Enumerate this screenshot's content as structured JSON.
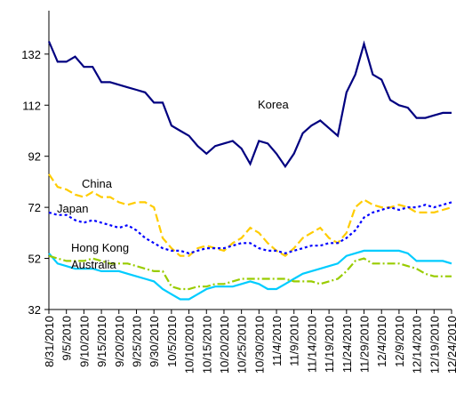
{
  "chart_data": {
    "type": "line",
    "categories": [
      "8/31/2010",
      null,
      "9/5/2010",
      null,
      "9/10/2010",
      null,
      "9/15/2010",
      null,
      "9/20/2010",
      null,
      "9/25/2010",
      null,
      "9/30/2010",
      null,
      "10/5/2010",
      null,
      "10/10/2010",
      null,
      "10/15/2010",
      null,
      "10/20/2010",
      null,
      "10/25/2010",
      null,
      "10/30/2010",
      null,
      "11/4/2010",
      null,
      "11/9/2010",
      null,
      "11/14/2010",
      null,
      "11/19/2010",
      null,
      "11/24/2010",
      null,
      "11/29/2010",
      null,
      "12/4/2010",
      null,
      "12/9/2010",
      null,
      "12/14/2010",
      null,
      "12/19/2010",
      null,
      "12/24/2010"
    ],
    "series": [
      {
        "name": "Korea",
        "color": "#000080",
        "dash": "none",
        "values": [
          137,
          129,
          129,
          131,
          127,
          127,
          121,
          121,
          120,
          119,
          118,
          117,
          113,
          113,
          104,
          102,
          100,
          96,
          93,
          96,
          97,
          98,
          95,
          89,
          98,
          97,
          93,
          88,
          93,
          101,
          104,
          106,
          103,
          100,
          117,
          124,
          136,
          124,
          122,
          114,
          112,
          111,
          107,
          107,
          108,
          109,
          109
        ]
      },
      {
        "name": "China",
        "color": "#ffcc00",
        "dash": "9,4",
        "values": [
          85,
          80,
          79,
          77,
          76,
          78,
          76,
          76,
          74,
          73,
          74,
          74,
          72,
          60,
          56,
          53,
          53,
          56,
          57,
          56,
          55,
          58,
          60,
          64,
          62,
          58,
          55,
          53,
          56,
          60,
          62,
          64,
          60,
          58,
          62,
          72,
          75,
          73,
          72,
          72,
          73,
          72,
          70,
          70,
          70,
          71,
          72
        ]
      },
      {
        "name": "Japan",
        "color": "#0000ff",
        "dash": "3,3",
        "values": [
          70,
          69,
          69,
          67,
          66,
          67,
          66,
          65,
          64,
          65,
          63,
          60,
          58,
          56,
          55,
          55,
          54,
          55,
          56,
          56,
          56,
          57,
          58,
          58,
          56,
          55,
          55,
          54,
          55,
          56,
          57,
          57,
          58,
          58,
          60,
          63,
          68,
          70,
          71,
          72,
          71,
          72,
          72,
          73,
          72,
          73,
          74
        ]
      },
      {
        "name": "Hong Kong",
        "color": "#00ccff",
        "dash": "none",
        "values": [
          54,
          50,
          49,
          48,
          48,
          48,
          47,
          47,
          47,
          46,
          45,
          44,
          43,
          40,
          38,
          36,
          36,
          38,
          40,
          41,
          41,
          41,
          42,
          43,
          42,
          40,
          40,
          42,
          44,
          46,
          47,
          48,
          49,
          50,
          53,
          54,
          55,
          55,
          55,
          55,
          55,
          54,
          51,
          51,
          51,
          51,
          50
        ]
      },
      {
        "name": "Australia",
        "color": "#99cc00",
        "dash": "9,3,2,3",
        "values": [
          53,
          52,
          51,
          51,
          51,
          52,
          51,
          50,
          50,
          50,
          49,
          48,
          47,
          47,
          41,
          40,
          40,
          41,
          41,
          42,
          42,
          43,
          44,
          44,
          44,
          44,
          44,
          44,
          43,
          43,
          43,
          42,
          43,
          44,
          47,
          51,
          52,
          50,
          50,
          50,
          50,
          49,
          48,
          46,
          45,
          45,
          45
        ]
      }
    ],
    "ylim": [
      32,
      149
    ],
    "yticks": [
      32,
      52,
      72,
      92,
      112,
      132
    ],
    "grid": false
  }
}
